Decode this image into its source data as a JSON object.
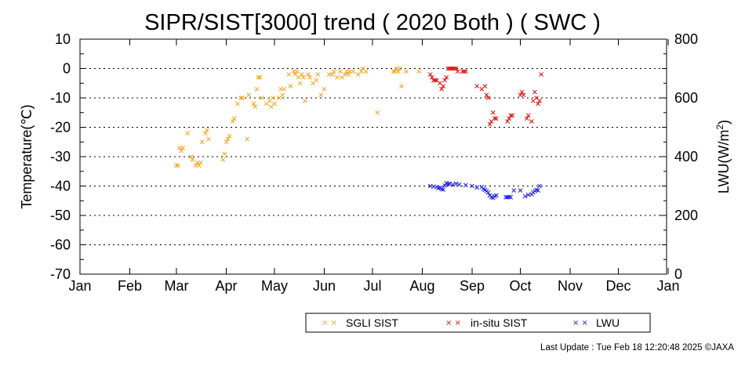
{
  "chart_data": {
    "type": "scatter",
    "title": "SIPR/SIST[3000] trend ( 2020 Both ) ( SWC )",
    "ylabel": "Temperature(℃)",
    "ylabel2": "LWU(W/m",
    "ylabel2_sup": "2",
    "ylabel2_end": ")",
    "xlim": [
      0,
      365
    ],
    "ylim": [
      -70,
      10
    ],
    "y2lim": [
      0,
      800
    ],
    "yticks": [
      10,
      0,
      -10,
      -20,
      -30,
      -40,
      -50,
      -60,
      -70
    ],
    "y2ticks": [
      800,
      600,
      400,
      200,
      0
    ],
    "xticks": [
      {
        "day": 0,
        "label": "Jan"
      },
      {
        "day": 31,
        "label": "Feb"
      },
      {
        "day": 60,
        "label": "Mar"
      },
      {
        "day": 91,
        "label": "Apr"
      },
      {
        "day": 121,
        "label": "May"
      },
      {
        "day": 152,
        "label": "Jun"
      },
      {
        "day": 182,
        "label": "Jul"
      },
      {
        "day": 213,
        "label": "Aug"
      },
      {
        "day": 244,
        "label": "Sep"
      },
      {
        "day": 274,
        "label": "Oct"
      },
      {
        "day": 305,
        "label": "Nov"
      },
      {
        "day": 335,
        "label": "Dec"
      },
      {
        "day": 366,
        "label": "Jan"
      }
    ],
    "grid": "horizontal dotted",
    "legend_position": "bottom",
    "series": [
      {
        "name": "SGLI SIST",
        "color": "#f5a623",
        "axis": "left",
        "marker": "x",
        "points": [
          [
            60,
            -33
          ],
          [
            61,
            -33
          ],
          [
            62,
            -27
          ],
          [
            63,
            -28
          ],
          [
            64,
            -27
          ],
          [
            67,
            -22
          ],
          [
            69,
            -30
          ],
          [
            70,
            -31
          ],
          [
            72,
            -33
          ],
          [
            73,
            -32
          ],
          [
            74,
            -33
          ],
          [
            75,
            -32
          ],
          [
            76,
            -25
          ],
          [
            78,
            -22
          ],
          [
            79,
            -21
          ],
          [
            80,
            -24
          ],
          [
            89,
            -31
          ],
          [
            90,
            -29
          ],
          [
            91,
            -25
          ],
          [
            92,
            -24
          ],
          [
            93,
            -23
          ],
          [
            95,
            -18
          ],
          [
            96,
            -17
          ],
          [
            98,
            -12
          ],
          [
            100,
            -10
          ],
          [
            101,
            -10
          ],
          [
            104,
            -24
          ],
          [
            105,
            -9
          ],
          [
            108,
            -12
          ],
          [
            109,
            -13
          ],
          [
            110,
            -7
          ],
          [
            111,
            -3
          ],
          [
            112,
            -3
          ],
          [
            113,
            -10
          ],
          [
            116,
            -12
          ],
          [
            118,
            -11
          ],
          [
            119,
            -13
          ],
          [
            120,
            -10
          ],
          [
            121,
            -12
          ],
          [
            124,
            -10
          ],
          [
            125,
            -7
          ],
          [
            126,
            -9
          ],
          [
            127,
            -7
          ],
          [
            130,
            -2
          ],
          [
            131,
            -6
          ],
          [
            133,
            -1
          ],
          [
            134,
            -2
          ],
          [
            135,
            -1
          ],
          [
            136,
            -3
          ],
          [
            137,
            -5
          ],
          [
            138,
            -2
          ],
          [
            139,
            -3
          ],
          [
            140,
            -11
          ],
          [
            142,
            -2
          ],
          [
            143,
            -3
          ],
          [
            145,
            -5
          ],
          [
            147,
            -4
          ],
          [
            148,
            -2
          ],
          [
            150,
            -9
          ],
          [
            152,
            -7
          ],
          [
            155,
            -2
          ],
          [
            157,
            -2
          ],
          [
            158,
            -1
          ],
          [
            160,
            -3
          ],
          [
            162,
            -1
          ],
          [
            163,
            -3
          ],
          [
            165,
            -2
          ],
          [
            166,
            -1
          ],
          [
            167,
            -2
          ],
          [
            168,
            -1
          ],
          [
            170,
            -1
          ],
          [
            173,
            -2
          ],
          [
            175,
            -1
          ],
          [
            176,
            0
          ],
          [
            178,
            -1
          ],
          [
            185,
            -15
          ],
          [
            195,
            -1
          ],
          [
            196,
            -1
          ],
          [
            197,
            0
          ],
          [
            198,
            -1
          ],
          [
            199,
            0
          ],
          [
            200,
            -6
          ],
          [
            203,
            -1
          ],
          [
            211,
            -1
          ]
        ]
      },
      {
        "name": "in-situ SIST",
        "color": "#dd1111",
        "axis": "left",
        "marker": "x",
        "points": [
          [
            218,
            -2
          ],
          [
            219,
            -3
          ],
          [
            220,
            -4
          ],
          [
            221,
            -4
          ],
          [
            222,
            -4
          ],
          [
            224,
            -5
          ],
          [
            225,
            -7
          ],
          [
            226,
            -6
          ],
          [
            227,
            -4
          ],
          [
            228,
            -3
          ],
          [
            229,
            0
          ],
          [
            230,
            0
          ],
          [
            231,
            0
          ],
          [
            232,
            0
          ],
          [
            233,
            0
          ],
          [
            234,
            0
          ],
          [
            235,
            -1
          ],
          [
            238,
            -1
          ],
          [
            239,
            -1
          ],
          [
            240,
            -1
          ],
          [
            247,
            -6
          ],
          [
            250,
            -7
          ],
          [
            252,
            -6
          ],
          [
            253,
            -9
          ],
          [
            254,
            -10
          ],
          [
            255,
            -19
          ],
          [
            256,
            -18
          ],
          [
            257,
            -15
          ],
          [
            258,
            -17
          ],
          [
            259,
            -17
          ],
          [
            266,
            -18
          ],
          [
            267,
            -17
          ],
          [
            268,
            -16
          ],
          [
            269,
            -16
          ],
          [
            274,
            -9
          ],
          [
            275,
            -8
          ],
          [
            276,
            -9
          ],
          [
            278,
            -17
          ],
          [
            279,
            -16
          ],
          [
            281,
            -18
          ],
          [
            282,
            -11
          ],
          [
            283,
            -8
          ],
          [
            284,
            -10
          ],
          [
            285,
            -12
          ],
          [
            286,
            -11
          ],
          [
            287,
            -2
          ]
        ]
      },
      {
        "name": "LWU",
        "color": "#1a1aee",
        "axis": "right",
        "marker": "x",
        "points": [
          [
            218,
            300
          ],
          [
            220,
            298
          ],
          [
            222,
            297
          ],
          [
            223,
            293
          ],
          [
            224,
            294
          ],
          [
            225,
            290
          ],
          [
            226,
            288
          ],
          [
            227,
            302
          ],
          [
            228,
            310
          ],
          [
            229,
            307
          ],
          [
            230,
            308
          ],
          [
            232,
            305
          ],
          [
            234,
            308
          ],
          [
            236,
            305
          ],
          [
            240,
            303
          ],
          [
            244,
            300
          ],
          [
            247,
            295
          ],
          [
            250,
            297
          ],
          [
            251,
            290
          ],
          [
            252,
            287
          ],
          [
            253,
            283
          ],
          [
            254,
            278
          ],
          [
            255,
            268
          ],
          [
            256,
            262
          ],
          [
            257,
            260
          ],
          [
            258,
            265
          ],
          [
            259,
            268
          ],
          [
            265,
            262
          ],
          [
            266,
            262
          ],
          [
            267,
            263
          ],
          [
            268,
            262
          ],
          [
            270,
            285
          ],
          [
            274,
            285
          ],
          [
            277,
            265
          ],
          [
            279,
            270
          ],
          [
            281,
            272
          ],
          [
            282,
            278
          ],
          [
            283,
            283
          ],
          [
            284,
            287
          ],
          [
            285,
            285
          ],
          [
            286,
            300
          ]
        ]
      }
    ]
  },
  "footer": "Last Update : Tue Feb 18 12:20:48 2025  ©JAXA"
}
